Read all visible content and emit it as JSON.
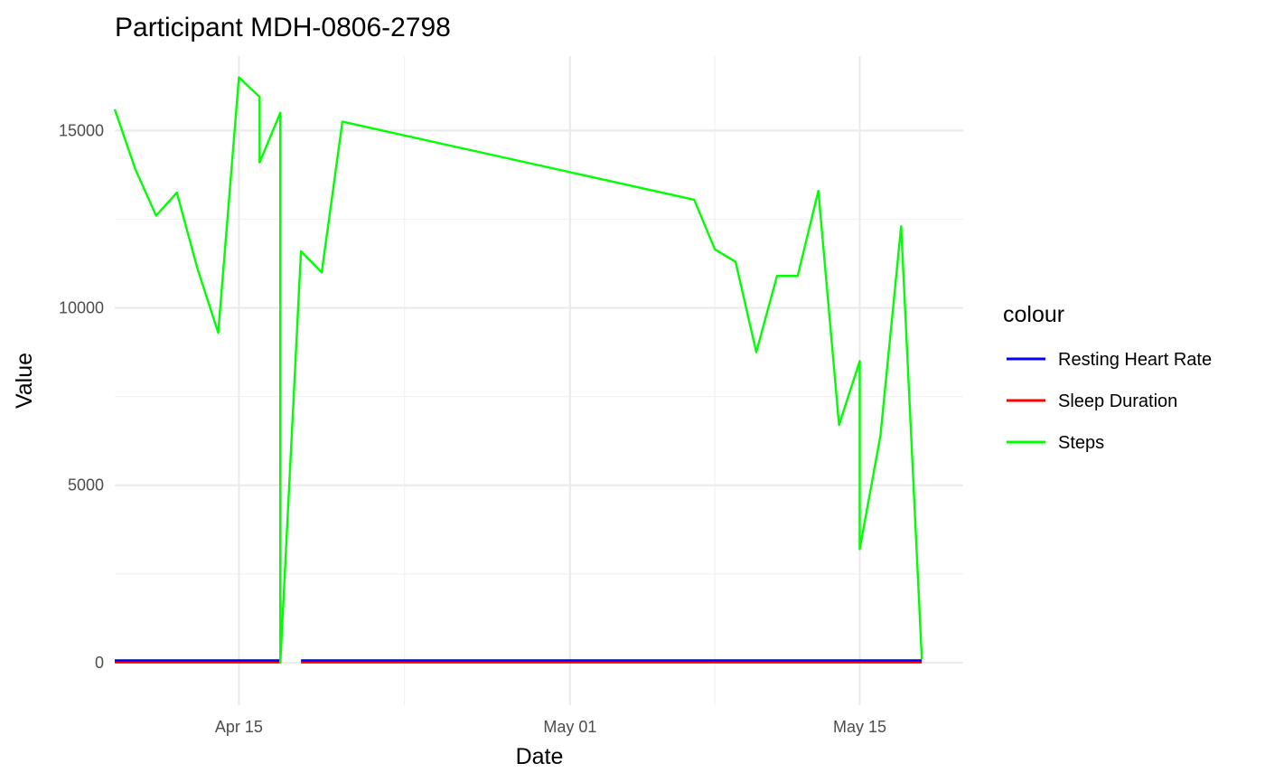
{
  "chart_data": {
    "type": "line",
    "title": "Participant MDH-0806-2798",
    "xlabel": "Date",
    "ylabel": "Value",
    "legend_title": "colour",
    "legend_position": "right",
    "grid": true,
    "x_domain": [
      "2024-04-09",
      "2024-05-20"
    ],
    "ylim": [
      -1200,
      17100
    ],
    "x_ticks": [
      {
        "date": "2024-04-15",
        "label": "Apr 15"
      },
      {
        "date": "2024-05-01",
        "label": "May 01"
      },
      {
        "date": "2024-05-15",
        "label": "May 15"
      }
    ],
    "y_ticks": [
      0,
      5000,
      10000,
      15000
    ],
    "series": [
      {
        "name": "Steps",
        "color": "#00ff00",
        "points": [
          [
            "2024-04-09",
            15600
          ],
          [
            "2024-04-10",
            13900
          ],
          [
            "2024-04-11",
            12600
          ],
          [
            "2024-04-12",
            13250
          ],
          [
            "2024-04-13",
            11100
          ],
          [
            "2024-04-14",
            9300
          ],
          [
            "2024-04-15",
            16500
          ],
          [
            "2024-04-16",
            15950
          ],
          [
            "2024-04-16",
            14100
          ],
          [
            "2024-04-17",
            15500
          ],
          [
            "2024-04-17",
            0
          ],
          [
            "2024-04-18",
            11600
          ],
          [
            "2024-04-19",
            11000
          ],
          [
            "2024-04-20",
            15250
          ],
          [
            "2024-05-07",
            13050
          ],
          [
            "2024-05-08",
            11650
          ],
          [
            "2024-05-09",
            11300
          ],
          [
            "2024-05-10",
            8750
          ],
          [
            "2024-05-11",
            10900
          ],
          [
            "2024-05-12",
            10900
          ],
          [
            "2024-05-13",
            13300
          ],
          [
            "2024-05-14",
            6700
          ],
          [
            "2024-05-15",
            8500
          ],
          [
            "2024-05-15",
            3200
          ],
          [
            "2024-05-16",
            6400
          ],
          [
            "2024-05-17",
            12300
          ],
          [
            "2024-05-18",
            100
          ]
        ]
      },
      {
        "name": "Resting Heart Rate",
        "color": "#0000ff",
        "segments": [
          [
            [
              "2024-04-09",
              62
            ],
            [
              "2024-04-17",
              62
            ]
          ],
          [
            [
              "2024-04-18",
              63
            ],
            [
              "2024-05-18",
              63
            ]
          ]
        ]
      },
      {
        "name": "Sleep Duration",
        "color": "#ff0000",
        "segments": [
          [
            [
              "2024-04-09",
              7
            ],
            [
              "2024-04-17",
              7
            ]
          ],
          [
            [
              "2024-04-18",
              7
            ],
            [
              "2024-05-18",
              7
            ]
          ]
        ]
      }
    ]
  }
}
